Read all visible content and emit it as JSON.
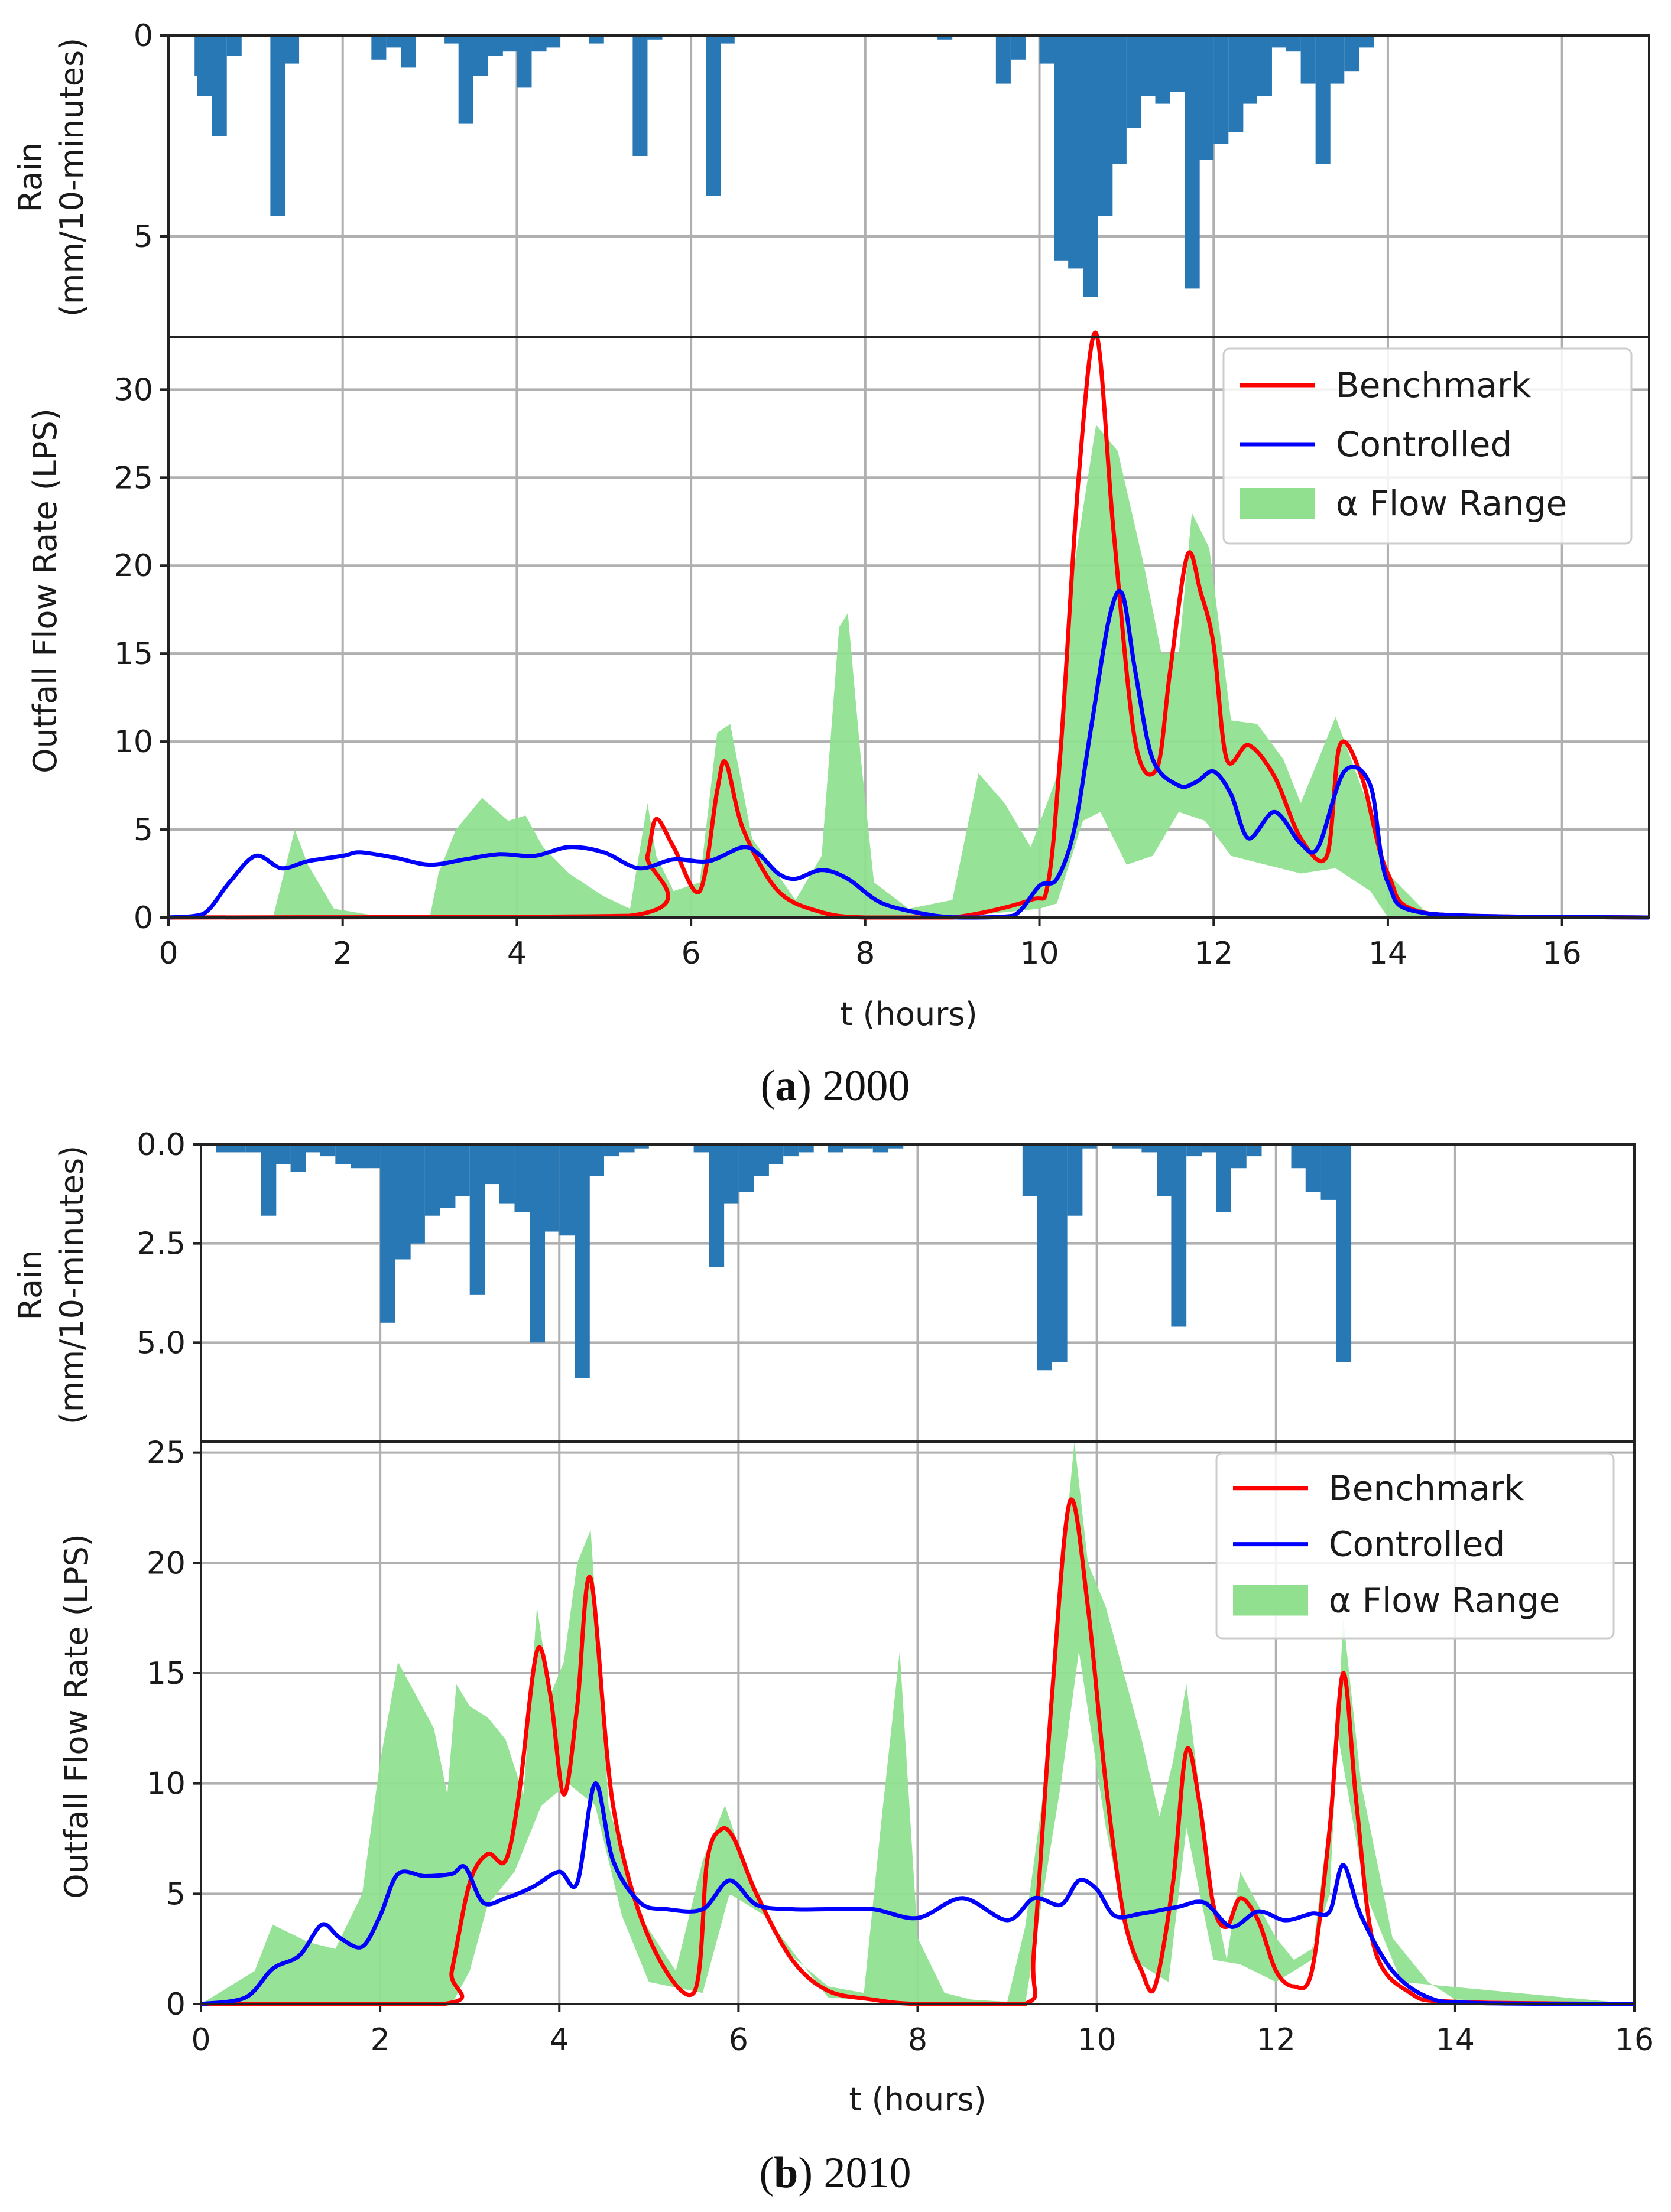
{
  "colors": {
    "rain": "#2878b5",
    "benchmark": "#ff0000",
    "controlled": "#0000ff",
    "range": "#90e090"
  },
  "chart_data": [
    {
      "type": "line",
      "caption_letter": "a",
      "caption_rest": ") 2000",
      "caption_open": "(",
      "xlabel": "t (hours)",
      "rain_ylabel_line1": "Rain",
      "rain_ylabel_line2": "(mm/10-minutes)",
      "flow_ylabel": "Outfall Flow Rate (LPS)",
      "xlim": [
        0,
        17
      ],
      "xticks": [
        "0",
        "2",
        "4",
        "6",
        "8",
        "10",
        "12",
        "14",
        "16"
      ],
      "rain_ylim": [
        0,
        7.5
      ],
      "rain_yticks": [
        "0",
        "5"
      ],
      "flow_ylim": [
        0,
        33
      ],
      "flow_yticks": [
        "0",
        "5",
        "10",
        "15",
        "20",
        "25",
        "30"
      ],
      "legend": [
        "Benchmark",
        "Controlled",
        "α Flow Range"
      ],
      "rain": {
        "bin_hours": 0.1667,
        "values": [
          [
            0.3,
            1.0
          ],
          [
            0.33,
            1.5
          ],
          [
            0.5,
            2.5
          ],
          [
            0.67,
            0.5
          ],
          [
            1.17,
            4.5
          ],
          [
            1.33,
            0.7
          ],
          [
            2.33,
            0.6
          ],
          [
            2.5,
            0.3
          ],
          [
            2.67,
            0.8
          ],
          [
            3.17,
            0.2
          ],
          [
            3.33,
            2.2
          ],
          [
            3.5,
            1.0
          ],
          [
            3.67,
            0.5
          ],
          [
            3.83,
            0.4
          ],
          [
            4.0,
            1.3
          ],
          [
            4.17,
            0.4
          ],
          [
            4.33,
            0.3
          ],
          [
            4.83,
            0.2
          ],
          [
            5.33,
            3.0
          ],
          [
            5.5,
            0.1
          ],
          [
            6.17,
            4.0
          ],
          [
            6.33,
            0.2
          ],
          [
            8.83,
            0.1
          ],
          [
            9.5,
            1.2
          ],
          [
            9.67,
            0.6
          ],
          [
            10.0,
            0.7
          ],
          [
            10.17,
            5.6
          ],
          [
            10.33,
            5.8
          ],
          [
            10.5,
            6.5
          ],
          [
            10.67,
            4.5
          ],
          [
            10.83,
            3.2
          ],
          [
            11.0,
            2.3
          ],
          [
            11.17,
            1.5
          ],
          [
            11.33,
            1.7
          ],
          [
            11.5,
            1.4
          ],
          [
            11.67,
            6.3
          ],
          [
            11.83,
            3.1
          ],
          [
            12.0,
            2.7
          ],
          [
            12.17,
            2.4
          ],
          [
            12.33,
            1.7
          ],
          [
            12.5,
            1.5
          ],
          [
            12.67,
            0.3
          ],
          [
            12.83,
            0.4
          ],
          [
            13.0,
            1.2
          ],
          [
            13.17,
            3.2
          ],
          [
            13.33,
            1.2
          ],
          [
            13.5,
            0.9
          ],
          [
            13.67,
            0.3
          ]
        ]
      },
      "benchmark": {
        "x": [
          0,
          5.3,
          5.5,
          5.6,
          5.8,
          6.1,
          6.3,
          6.4,
          6.6,
          7.0,
          7.5,
          8,
          9,
          9.9,
          10.1,
          10.25,
          10.45,
          10.65,
          10.85,
          11.1,
          11.35,
          11.5,
          11.7,
          11.85,
          12.0,
          12.15,
          12.4,
          12.7,
          13.0,
          13.3,
          13.45,
          13.7,
          14,
          14.5,
          17
        ],
        "y": [
          0,
          0.1,
          3.5,
          5.6,
          4.0,
          1.5,
          7.2,
          8.8,
          5.0,
          1.5,
          0.3,
          0,
          0,
          1.0,
          2.0,
          10,
          25,
          33.2,
          22,
          10,
          8.5,
          14,
          20.6,
          18.5,
          15.5,
          9,
          9.8,
          8,
          4.5,
          3.5,
          9.8,
          8,
          2.5,
          0.2,
          0
        ]
      },
      "controlled": {
        "x": [
          0,
          0.4,
          0.7,
          1.0,
          1.3,
          1.6,
          2.0,
          2.2,
          2.6,
          3.0,
          3.4,
          3.8,
          4.2,
          4.6,
          5.0,
          5.4,
          5.8,
          6.2,
          6.6,
          6.8,
          7.0,
          7.2,
          7.5,
          7.8,
          8.2,
          8.8,
          9.2,
          9.7,
          10.0,
          10.2,
          10.4,
          10.6,
          10.8,
          10.95,
          11.1,
          11.3,
          11.6,
          11.8,
          12.0,
          12.2,
          12.4,
          12.7,
          13.0,
          13.2,
          13.5,
          13.8,
          14.0,
          14.5,
          17
        ],
        "y": [
          0,
          0.2,
          2.0,
          3.5,
          2.8,
          3.2,
          3.5,
          3.7,
          3.4,
          3.0,
          3.3,
          3.6,
          3.5,
          4.0,
          3.7,
          2.8,
          3.3,
          3.2,
          4.0,
          3.5,
          2.5,
          2.2,
          2.7,
          2.2,
          0.8,
          0.1,
          0,
          0.1,
          1.8,
          2.2,
          5.0,
          11,
          17,
          18.4,
          14,
          9,
          7.5,
          7.7,
          8.3,
          7.0,
          4.5,
          6.0,
          4.2,
          4.0,
          8.3,
          7.5,
          2.0,
          0.2,
          0
        ]
      },
      "range_upper": {
        "x": [
          0,
          1.2,
          1.45,
          1.6,
          1.9,
          2.5,
          3.0,
          3.1,
          3.3,
          3.6,
          3.9,
          4.1,
          4.3,
          4.6,
          5.0,
          5.3,
          5.5,
          5.6,
          5.8,
          6.1,
          6.3,
          6.45,
          6.7,
          7.2,
          7.5,
          7.7,
          7.8,
          7.95,
          8.1,
          8.5,
          9.0,
          9.3,
          9.6,
          9.9,
          10.2,
          10.4,
          10.65,
          10.9,
          11.2,
          11.4,
          11.6,
          11.75,
          11.95,
          12.2,
          12.5,
          12.8,
          13.0,
          13.4,
          13.8,
          14.0,
          14.5,
          17
        ],
        "y": [
          0,
          0,
          5.0,
          3.0,
          0.5,
          0,
          0,
          2.5,
          5.0,
          6.8,
          5.5,
          5.8,
          4.0,
          2.5,
          1.2,
          0.5,
          6.5,
          3.5,
          1.5,
          2.0,
          10.5,
          11.0,
          4.5,
          1.0,
          3.5,
          16.5,
          17.3,
          9,
          2,
          0.5,
          1.0,
          8.2,
          6.5,
          4.0,
          8,
          20,
          28,
          26.5,
          20,
          15,
          15,
          23,
          21,
          11.2,
          11,
          9,
          6.5,
          11.4,
          6,
          2.5,
          0,
          0
        ]
      },
      "range_lower": {
        "x": [
          0,
          9.0,
          10.0,
          10.2,
          10.5,
          10.7,
          11.0,
          11.3,
          11.6,
          11.9,
          12.2,
          12.6,
          13.0,
          13.4,
          13.8,
          14.0,
          17
        ],
        "y": [
          0,
          0,
          0.5,
          0.8,
          5.5,
          6.0,
          3.0,
          3.5,
          6.0,
          5.5,
          3.5,
          3.0,
          2.5,
          2.8,
          1.5,
          0,
          0
        ]
      }
    },
    {
      "type": "line",
      "caption_letter": "b",
      "caption_rest": ") 2010",
      "caption_open": "(",
      "xlabel": "t (hours)",
      "rain_ylabel_line1": "Rain",
      "rain_ylabel_line2": "(mm/10-minutes)",
      "flow_ylabel": "Outfall Flow Rate (LPS)",
      "xlim": [
        0,
        16
      ],
      "xticks": [
        "0",
        "2",
        "4",
        "6",
        "8",
        "10",
        "12",
        "14",
        "16"
      ],
      "rain_ylim": [
        0,
        7.5
      ],
      "rain_yticks": [
        "0.0",
        "2.5",
        "5.0"
      ],
      "flow_ylim": [
        0,
        25.5
      ],
      "flow_yticks": [
        "0",
        "5",
        "10",
        "15",
        "20",
        "25"
      ],
      "legend": [
        "Benchmark",
        "Controlled",
        "α Flow Range"
      ],
      "rain": {
        "bin_hours": 0.1667,
        "values": [
          [
            0.17,
            0.2
          ],
          [
            0.33,
            0.2
          ],
          [
            0.5,
            0.2
          ],
          [
            0.67,
            1.8
          ],
          [
            0.83,
            0.5
          ],
          [
            1.0,
            0.7
          ],
          [
            1.17,
            0.2
          ],
          [
            1.33,
            0.3
          ],
          [
            1.5,
            0.5
          ],
          [
            1.67,
            0.6
          ],
          [
            1.83,
            0.6
          ],
          [
            2.0,
            4.5
          ],
          [
            2.17,
            2.9
          ],
          [
            2.33,
            2.5
          ],
          [
            2.5,
            1.8
          ],
          [
            2.67,
            1.6
          ],
          [
            2.83,
            1.3
          ],
          [
            3.0,
            3.8
          ],
          [
            3.17,
            1.0
          ],
          [
            3.33,
            1.5
          ],
          [
            3.5,
            1.7
          ],
          [
            3.67,
            5.0
          ],
          [
            3.83,
            2.2
          ],
          [
            4.0,
            2.3
          ],
          [
            4.17,
            5.9
          ],
          [
            4.33,
            0.8
          ],
          [
            4.5,
            0.3
          ],
          [
            4.67,
            0.2
          ],
          [
            4.83,
            0.1
          ],
          [
            5.5,
            0.2
          ],
          [
            5.67,
            3.1
          ],
          [
            5.83,
            1.5
          ],
          [
            6.0,
            1.2
          ],
          [
            6.17,
            0.8
          ],
          [
            6.33,
            0.5
          ],
          [
            6.5,
            0.3
          ],
          [
            6.67,
            0.2
          ],
          [
            7.0,
            0.2
          ],
          [
            7.17,
            0.1
          ],
          [
            7.33,
            0.1
          ],
          [
            7.5,
            0.2
          ],
          [
            7.67,
            0.1
          ],
          [
            9.17,
            1.3
          ],
          [
            9.33,
            5.7
          ],
          [
            9.5,
            5.5
          ],
          [
            9.67,
            1.8
          ],
          [
            9.83,
            0.1
          ],
          [
            10.17,
            0.1
          ],
          [
            10.33,
            0.1
          ],
          [
            10.5,
            0.2
          ],
          [
            10.67,
            1.3
          ],
          [
            10.83,
            4.6
          ],
          [
            11.0,
            0.3
          ],
          [
            11.17,
            0.2
          ],
          [
            11.33,
            1.7
          ],
          [
            11.5,
            0.6
          ],
          [
            11.67,
            0.3
          ],
          [
            12.17,
            0.6
          ],
          [
            12.33,
            1.2
          ],
          [
            12.5,
            1.4
          ],
          [
            12.67,
            5.5
          ]
        ]
      },
      "benchmark": {
        "x": [
          0,
          2.7,
          2.8,
          3.0,
          3.2,
          3.4,
          3.55,
          3.75,
          3.9,
          4.05,
          4.2,
          4.35,
          4.6,
          5.0,
          5.5,
          5.65,
          5.8,
          5.95,
          6.2,
          6.6,
          7.0,
          7.5,
          8.0,
          9.2,
          9.3,
          9.5,
          9.7,
          9.9,
          10.1,
          10.3,
          10.5,
          10.65,
          10.85,
          11.0,
          11.15,
          11.3,
          11.45,
          11.6,
          11.8,
          12.0,
          12.2,
          12.4,
          12.6,
          12.75,
          12.9,
          13.1,
          13.5,
          14.0,
          16
        ],
        "y": [
          0,
          0,
          1.5,
          5.5,
          6.8,
          6.5,
          9.5,
          16,
          14,
          9.5,
          13.5,
          19.3,
          9,
          3,
          0.5,
          6.5,
          7.9,
          7.5,
          5,
          2,
          0.6,
          0.2,
          0,
          0,
          2.5,
          14,
          22.8,
          18,
          10,
          4,
          1.5,
          0.8,
          5.5,
          11.5,
          9,
          4.5,
          3.5,
          4.8,
          3.8,
          1.5,
          0.8,
          1.5,
          8,
          15,
          9,
          2.5,
          0.5,
          0.1,
          0
        ]
      },
      "controlled": {
        "x": [
          0,
          0.5,
          0.8,
          1.1,
          1.35,
          1.55,
          1.8,
          2.0,
          2.2,
          2.5,
          2.8,
          2.95,
          3.15,
          3.4,
          3.7,
          4.0,
          4.2,
          4.4,
          4.6,
          4.9,
          5.2,
          5.6,
          5.9,
          6.2,
          6.6,
          7.0,
          7.5,
          8.0,
          8.5,
          9.0,
          9.3,
          9.6,
          9.8,
          10.0,
          10.2,
          10.5,
          10.9,
          11.2,
          11.5,
          11.8,
          12.1,
          12.4,
          12.6,
          12.75,
          12.95,
          13.3,
          13.7,
          14.2,
          16
        ],
        "y": [
          0,
          0.3,
          1.6,
          2.2,
          3.6,
          3.0,
          2.6,
          4.0,
          5.9,
          5.8,
          5.9,
          6.2,
          4.6,
          4.8,
          5.3,
          6.0,
          5.5,
          10.0,
          6.5,
          4.6,
          4.3,
          4.3,
          5.6,
          4.5,
          4.3,
          4.3,
          4.3,
          3.9,
          4.8,
          3.8,
          4.8,
          4.5,
          5.6,
          5.2,
          4.0,
          4.1,
          4.4,
          4.6,
          3.5,
          4.2,
          3.8,
          4.1,
          4.2,
          6.3,
          4.0,
          1.5,
          0.3,
          0.05,
          0
        ]
      },
      "range_upper": {
        "x": [
          0,
          0.6,
          0.8,
          1.0,
          1.2,
          1.5,
          1.8,
          2.0,
          2.2,
          2.4,
          2.6,
          2.75,
          2.85,
          3.0,
          3.2,
          3.4,
          3.6,
          3.75,
          3.9,
          4.05,
          4.2,
          4.35,
          4.55,
          4.9,
          5.3,
          5.6,
          5.85,
          6.1,
          6.5,
          7.0,
          7.4,
          7.6,
          7.8,
          8.0,
          8.3,
          8.6,
          9.0,
          9.2,
          9.4,
          9.6,
          9.75,
          9.9,
          10.1,
          10.3,
          10.5,
          10.7,
          10.85,
          11.0,
          11.15,
          11.3,
          11.45,
          11.6,
          11.8,
          12.0,
          12.2,
          12.4,
          12.6,
          12.75,
          12.95,
          13.3,
          13.7,
          14.0,
          16
        ],
        "y": [
          0,
          1.5,
          3.6,
          3.2,
          2.8,
          2.5,
          5.0,
          11.0,
          15.5,
          14,
          12.5,
          9.5,
          14.5,
          13.5,
          13,
          12,
          9.5,
          18,
          14,
          15.5,
          20,
          21.5,
          9,
          4,
          1.5,
          6.5,
          9,
          6,
          2.5,
          0.8,
          0.5,
          8.5,
          16,
          3,
          0.5,
          0.2,
          0.1,
          3.5,
          9.5,
          19,
          25.5,
          20,
          18,
          15,
          12,
          8.5,
          11,
          14.5,
          9.5,
          5,
          2,
          6,
          4.5,
          3,
          2,
          2.5,
          5,
          17.5,
          10,
          3,
          1,
          0.2,
          0
        ]
      },
      "range_lower": {
        "x": [
          0,
          1.5,
          2.0,
          2.3,
          2.6,
          2.8,
          3.0,
          3.2,
          3.5,
          3.8,
          4.1,
          4.4,
          4.7,
          5.0,
          5.6,
          5.9,
          6.3,
          7.0,
          8.0,
          9.2,
          9.6,
          9.8,
          10.1,
          10.4,
          10.8,
          11.0,
          11.3,
          11.6,
          12.0,
          12.4,
          12.7,
          13.0,
          13.4,
          16
        ],
        "y": [
          0,
          0,
          0,
          0,
          0,
          0,
          1.5,
          4.5,
          6,
          9,
          10,
          9,
          4,
          1,
          0.5,
          5,
          4,
          0.3,
          0,
          0,
          10,
          16,
          8,
          2,
          1,
          8,
          2,
          1.8,
          1,
          2,
          12,
          5,
          1,
          0
        ]
      }
    }
  ]
}
